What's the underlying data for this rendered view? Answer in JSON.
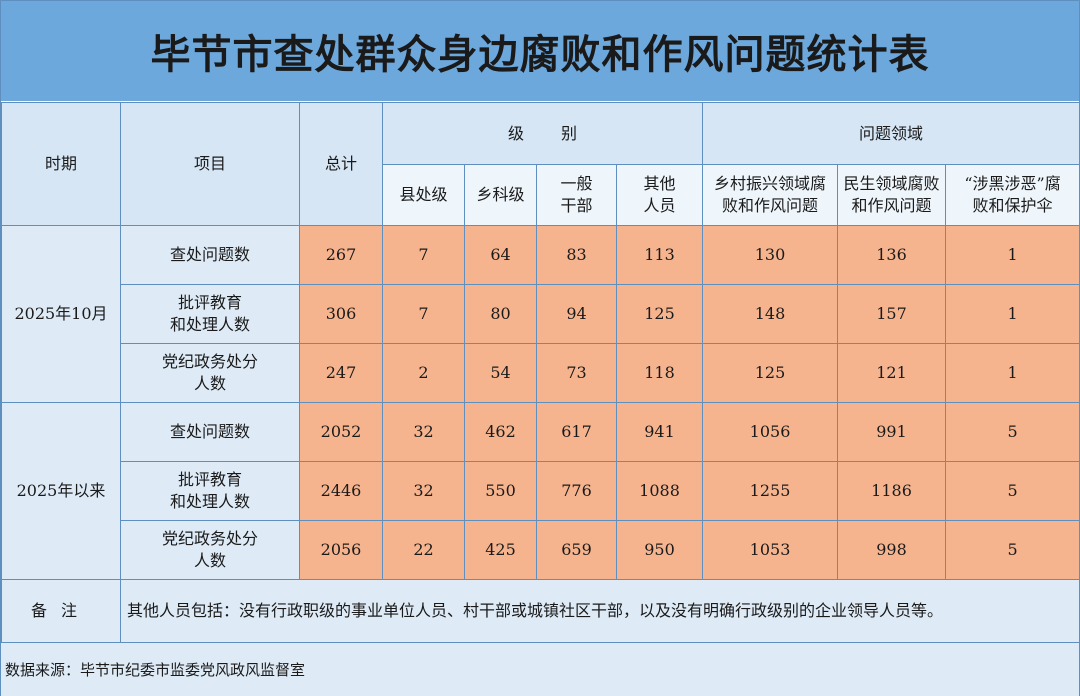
{
  "title": "毕节市查处群众身边腐败和作风问题统计表",
  "header": {
    "period": "时期",
    "item": "项目",
    "total": "总计",
    "level_group": "级 别",
    "domain_group": "问题领域",
    "levels": [
      {
        "line1": "县处级",
        "line2": ""
      },
      {
        "line1": "乡科级",
        "line2": ""
      },
      {
        "line1": "一般",
        "line2": "干部"
      },
      {
        "line1": "其他",
        "line2": "人员"
      }
    ],
    "domains": [
      {
        "line1": "乡村振兴领域腐",
        "line2": "败和作风问题"
      },
      {
        "line1": "民生领域腐败",
        "line2": "和作风问题"
      },
      {
        "line1": "“涉黑涉恶”腐",
        "line2": "败和保护伞"
      }
    ]
  },
  "groups": [
    {
      "period": "2025年10月",
      "rows": [
        {
          "item_line1": "查处问题数",
          "item_line2": "",
          "values": [
            "267",
            "7",
            "64",
            "83",
            "113",
            "130",
            "136",
            "1"
          ]
        },
        {
          "item_line1": "批评教育",
          "item_line2": "和处理人数",
          "values": [
            "306",
            "7",
            "80",
            "94",
            "125",
            "148",
            "157",
            "1"
          ]
        },
        {
          "item_line1": "党纪政务处分",
          "item_line2": "人数",
          "values": [
            "247",
            "2",
            "54",
            "73",
            "118",
            "125",
            "121",
            "1"
          ]
        }
      ]
    },
    {
      "period": "2025年以来",
      "rows": [
        {
          "item_line1": "查处问题数",
          "item_line2": "",
          "values": [
            "2052",
            "32",
            "462",
            "617",
            "941",
            "1056",
            "991",
            "5"
          ]
        },
        {
          "item_line1": "批评教育",
          "item_line2": "和处理人数",
          "values": [
            "2446",
            "32",
            "550",
            "776",
            "1088",
            "1255",
            "1186",
            "5"
          ]
        },
        {
          "item_line1": "党纪政务处分",
          "item_line2": "人数",
          "values": [
            "2056",
            "22",
            "425",
            "659",
            "950",
            "1053",
            "998",
            "5"
          ]
        }
      ]
    }
  ],
  "note": {
    "label": "备注",
    "text": "其他人员包括：没有行政职级的事业单位人员、村干部或城镇社区干部，以及没有明确行政级别的企业领导人员等。"
  },
  "source": "数据来源：毕节市纪委市监委党风政风监督室",
  "colors": {
    "title_bg": "#6da8dc",
    "header_bg": "#d6e6f4",
    "label_bg": "#deebf7",
    "value_bg": "#f6b48e",
    "border": "#5f8fbf"
  }
}
